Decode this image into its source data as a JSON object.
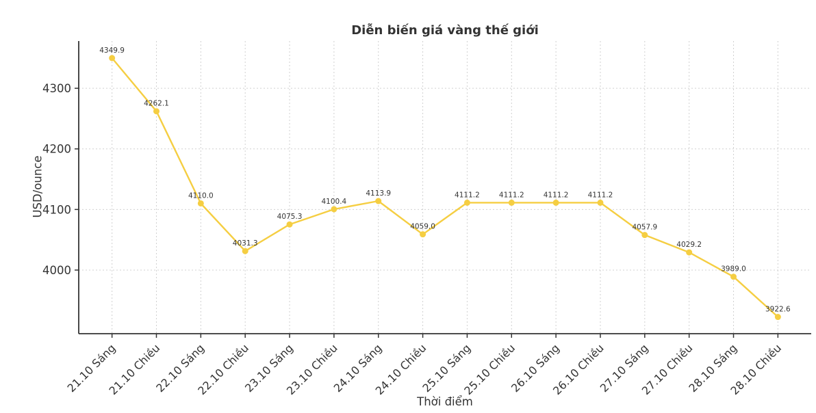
{
  "chart_data": {
    "type": "line",
    "title": "Diễn biến giá vàng thế giới",
    "xlabel": "Thời điểm",
    "ylabel": "USD/ounce",
    "categories": [
      "21.10 Sáng",
      "21.10 Chiều",
      "22.10 Sáng",
      "22.10 Chiều",
      "23.10 Sáng",
      "23.10 Chiều",
      "24.10 Sáng",
      "24.10 Chiều",
      "25.10 Sáng",
      "25.10 Chiều",
      "26.10 Sáng",
      "26.10 Chiều",
      "27.10 Sáng",
      "27.10 Chiều",
      "28.10 Sáng",
      "28.10 Chiều"
    ],
    "values": [
      4349.9,
      4262.1,
      4110.0,
      4031.3,
      4075.3,
      4100.4,
      4113.9,
      4059.0,
      4111.2,
      4111.2,
      4111.2,
      4111.2,
      4057.9,
      4029.2,
      3989.0,
      3922.6
    ],
    "point_labels": [
      "4349.9",
      "4262.1",
      "4110.0",
      "4031.3",
      "4075.3",
      "4100.4",
      "4113.9",
      "4059.0",
      "4111.2",
      "4111.2",
      "4111.2",
      "4111.2",
      "4057.9",
      "4029.2",
      "3989.0",
      "3922.6"
    ],
    "y_ticks": [
      4000,
      4100,
      4200,
      4300
    ],
    "ylim": [
      3895,
      4378
    ],
    "grid": true,
    "grid_style": "dotted",
    "legend_position": "none",
    "colors": {
      "line": "#F5CE42",
      "marker": "#F5CE42",
      "grid": "#d0d0d0",
      "axis": "#333333",
      "text": "#333333",
      "background": "#ffffff"
    }
  }
}
